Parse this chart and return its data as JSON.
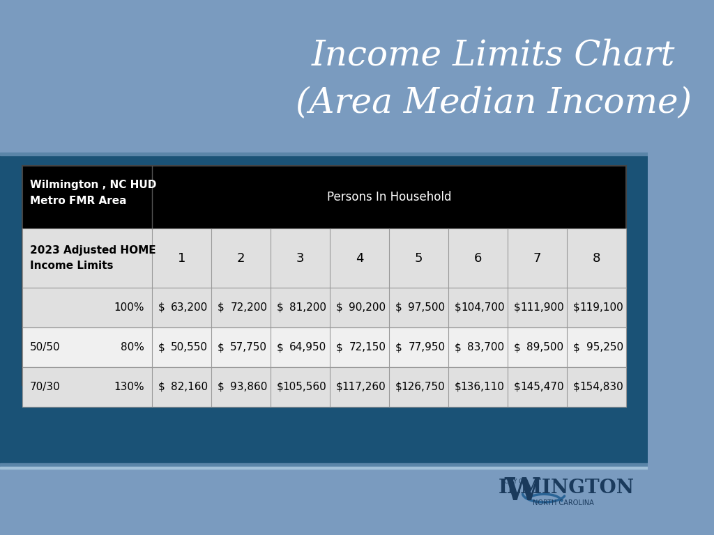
{
  "title_line1": "Income Limits Chart",
  "title_line2": "(Area Median Income)",
  "title_color": "#ffffff",
  "bg_color_top": "#7a9bbf",
  "bg_color_mid": "#1a5276",
  "table_bg_black": "#000000",
  "table_bg_light": "#e0e0e0",
  "table_bg_white": "#f0f0f0",
  "col_headers": [
    "1",
    "2",
    "3",
    "4",
    "5",
    "6",
    "7",
    "8"
  ],
  "rows": [
    {
      "label_left": "",
      "label_pct": "100%",
      "values": [
        "$   63,200",
        "$   72,200",
        "$   81,200",
        "$   90,200",
        "$   97,500",
        "$  104,700",
        "$  111,900",
        "$  119,100"
      ],
      "row_bg": "#e0e0e0"
    },
    {
      "label_left": "50/50",
      "label_pct": "80%",
      "values": [
        "$   50,550",
        "$   57,750",
        "$   64,950",
        "$   72,150",
        "$   77,950",
        "$   83,700",
        "$   89,500",
        "$   95,250"
      ],
      "row_bg": "#f0f0f0"
    },
    {
      "label_left": "70/30",
      "label_pct": "130%",
      "values": [
        "$   82,160",
        "$   93,860",
        "$  105,560",
        "$  117,260",
        "$  126,750",
        "$  136,110",
        "$  145,470",
        "$  154,830"
      ],
      "row_bg": "#e0e0e0"
    }
  ],
  "separator_color": "#5a85a8",
  "separator_color2": "#a0c0d8",
  "line_color": "#aaaaaa",
  "logo_text_color": "#1a3a5c",
  "logo_swirl_color": "#2a6496"
}
